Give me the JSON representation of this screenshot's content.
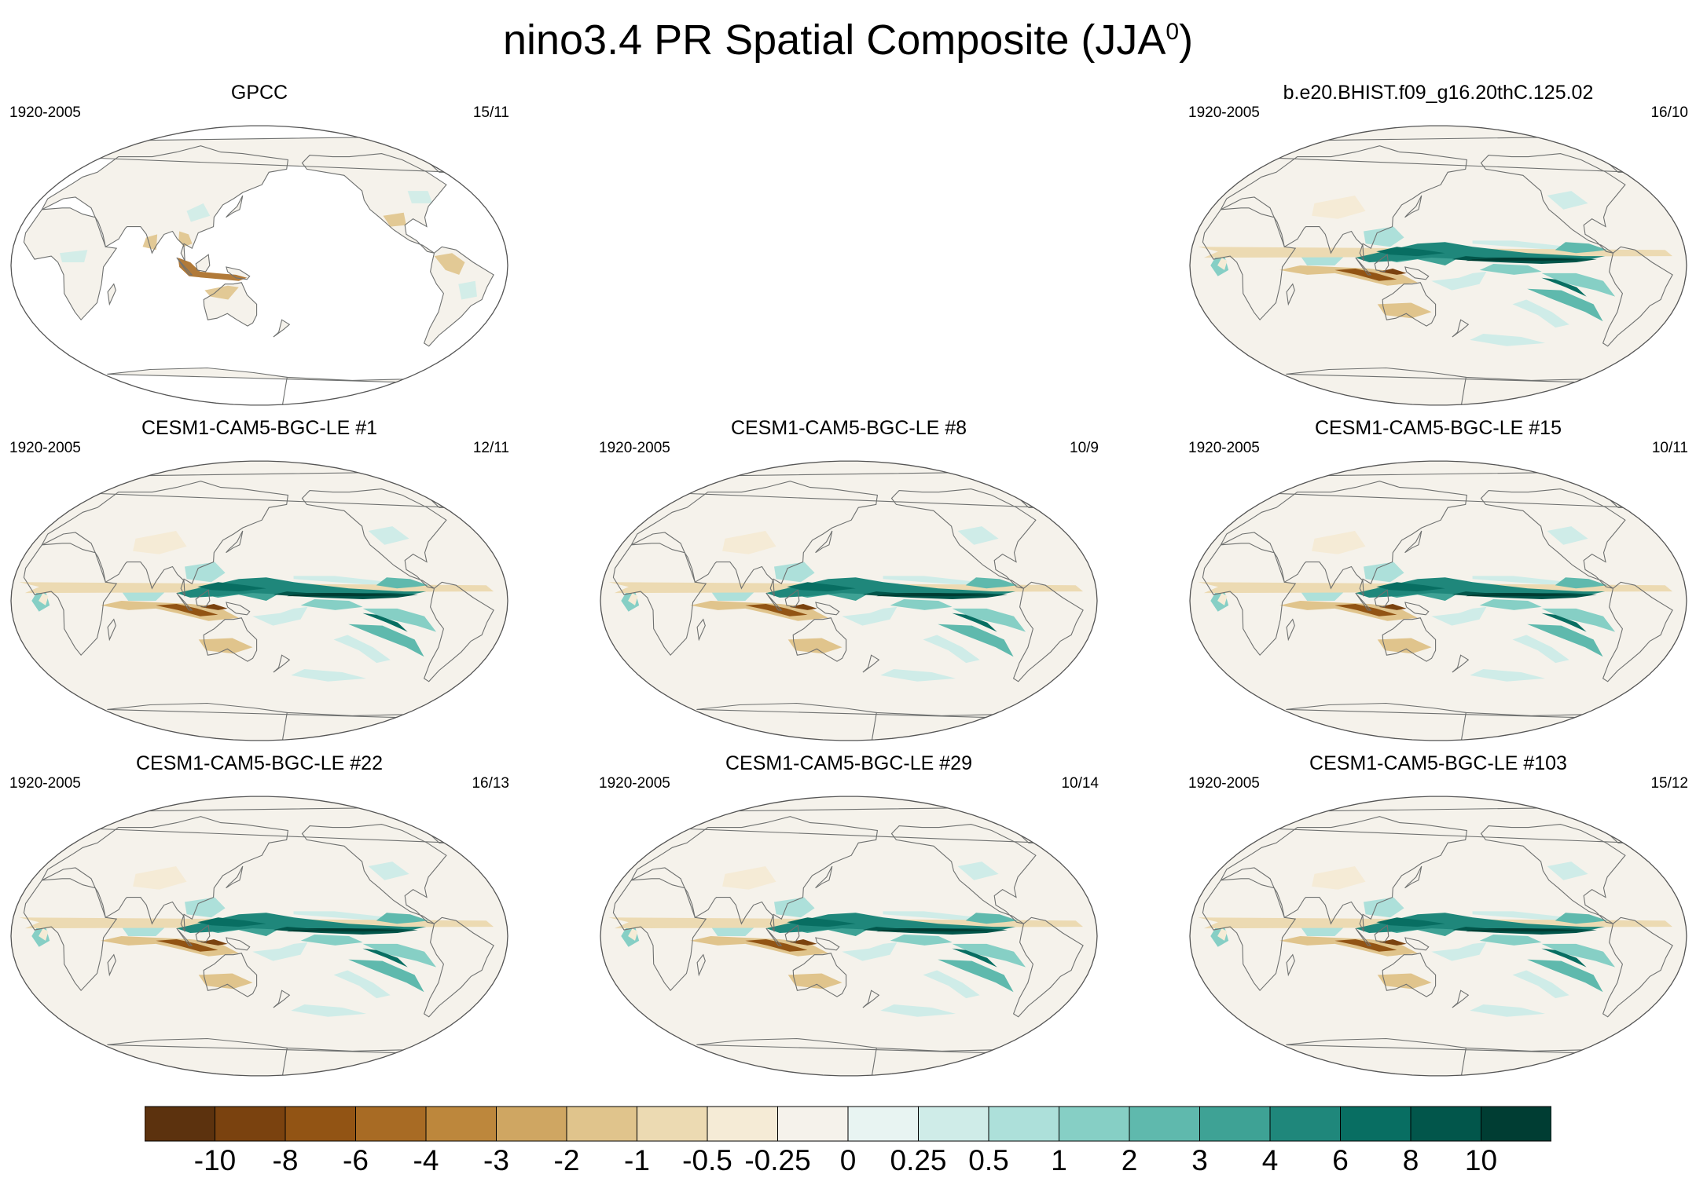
{
  "title": {
    "main": "nino3.4 PR Spatial Composite (JJA",
    "sup": "0",
    "close": ")"
  },
  "colors": {
    "scale": [
      "#5c320e",
      "#7a420f",
      "#925414",
      "#a86b24",
      "#bd873c",
      "#cfa662",
      "#e0c48c",
      "#ecdab2",
      "#f5ebd6",
      "#f5f2eb",
      "#e8f4f2",
      "#cfece8",
      "#ade0da",
      "#86cfc5",
      "#5fb9ad",
      "#3ea295",
      "#1f877b",
      "#086e62",
      "#02564b",
      "#003d33"
    ],
    "coast": "#6f7170",
    "frame": "#555555"
  },
  "chart_data": [
    {
      "type": "heatmap",
      "id": "gpcc",
      "panel_title": "GPCC",
      "period": "1920-2005",
      "count": "15/11",
      "pattern": "observed-land-only"
    },
    {
      "type": "heatmap",
      "id": "hist",
      "panel_title": "b.e20.BHIST.f09_g16.20thC.125.02",
      "period": "1920-2005",
      "count": "16/10",
      "pattern": "model"
    },
    {
      "type": "heatmap",
      "id": "m1",
      "panel_title": "CESM1-CAM5-BGC-LE #1",
      "period": "1920-2005",
      "count": "12/11",
      "pattern": "model"
    },
    {
      "type": "heatmap",
      "id": "m8",
      "panel_title": "CESM1-CAM5-BGC-LE #8",
      "period": "1920-2005",
      "count": "10/9",
      "pattern": "model"
    },
    {
      "type": "heatmap",
      "id": "m15",
      "panel_title": "CESM1-CAM5-BGC-LE #15",
      "period": "1920-2005",
      "count": "10/11",
      "pattern": "model"
    },
    {
      "type": "heatmap",
      "id": "m22",
      "panel_title": "CESM1-CAM5-BGC-LE #22",
      "period": "1920-2005",
      "count": "16/13",
      "pattern": "model"
    },
    {
      "type": "heatmap",
      "id": "m29",
      "panel_title": "CESM1-CAM5-BGC-LE #29",
      "period": "1920-2005",
      "count": "10/14",
      "pattern": "model"
    },
    {
      "type": "heatmap",
      "id": "m103",
      "panel_title": "CESM1-CAM5-BGC-LE #103",
      "period": "1920-2005",
      "count": "15/12",
      "pattern": "model"
    }
  ],
  "colorbar": {
    "labels": [
      "-10",
      "-8",
      "-6",
      "-4",
      "-3",
      "-2",
      "-1",
      "-0.5",
      "-0.25",
      "0",
      "0.25",
      "0.5",
      "1",
      "2",
      "3",
      "4",
      "6",
      "8",
      "10"
    ],
    "n_bins": 20
  }
}
